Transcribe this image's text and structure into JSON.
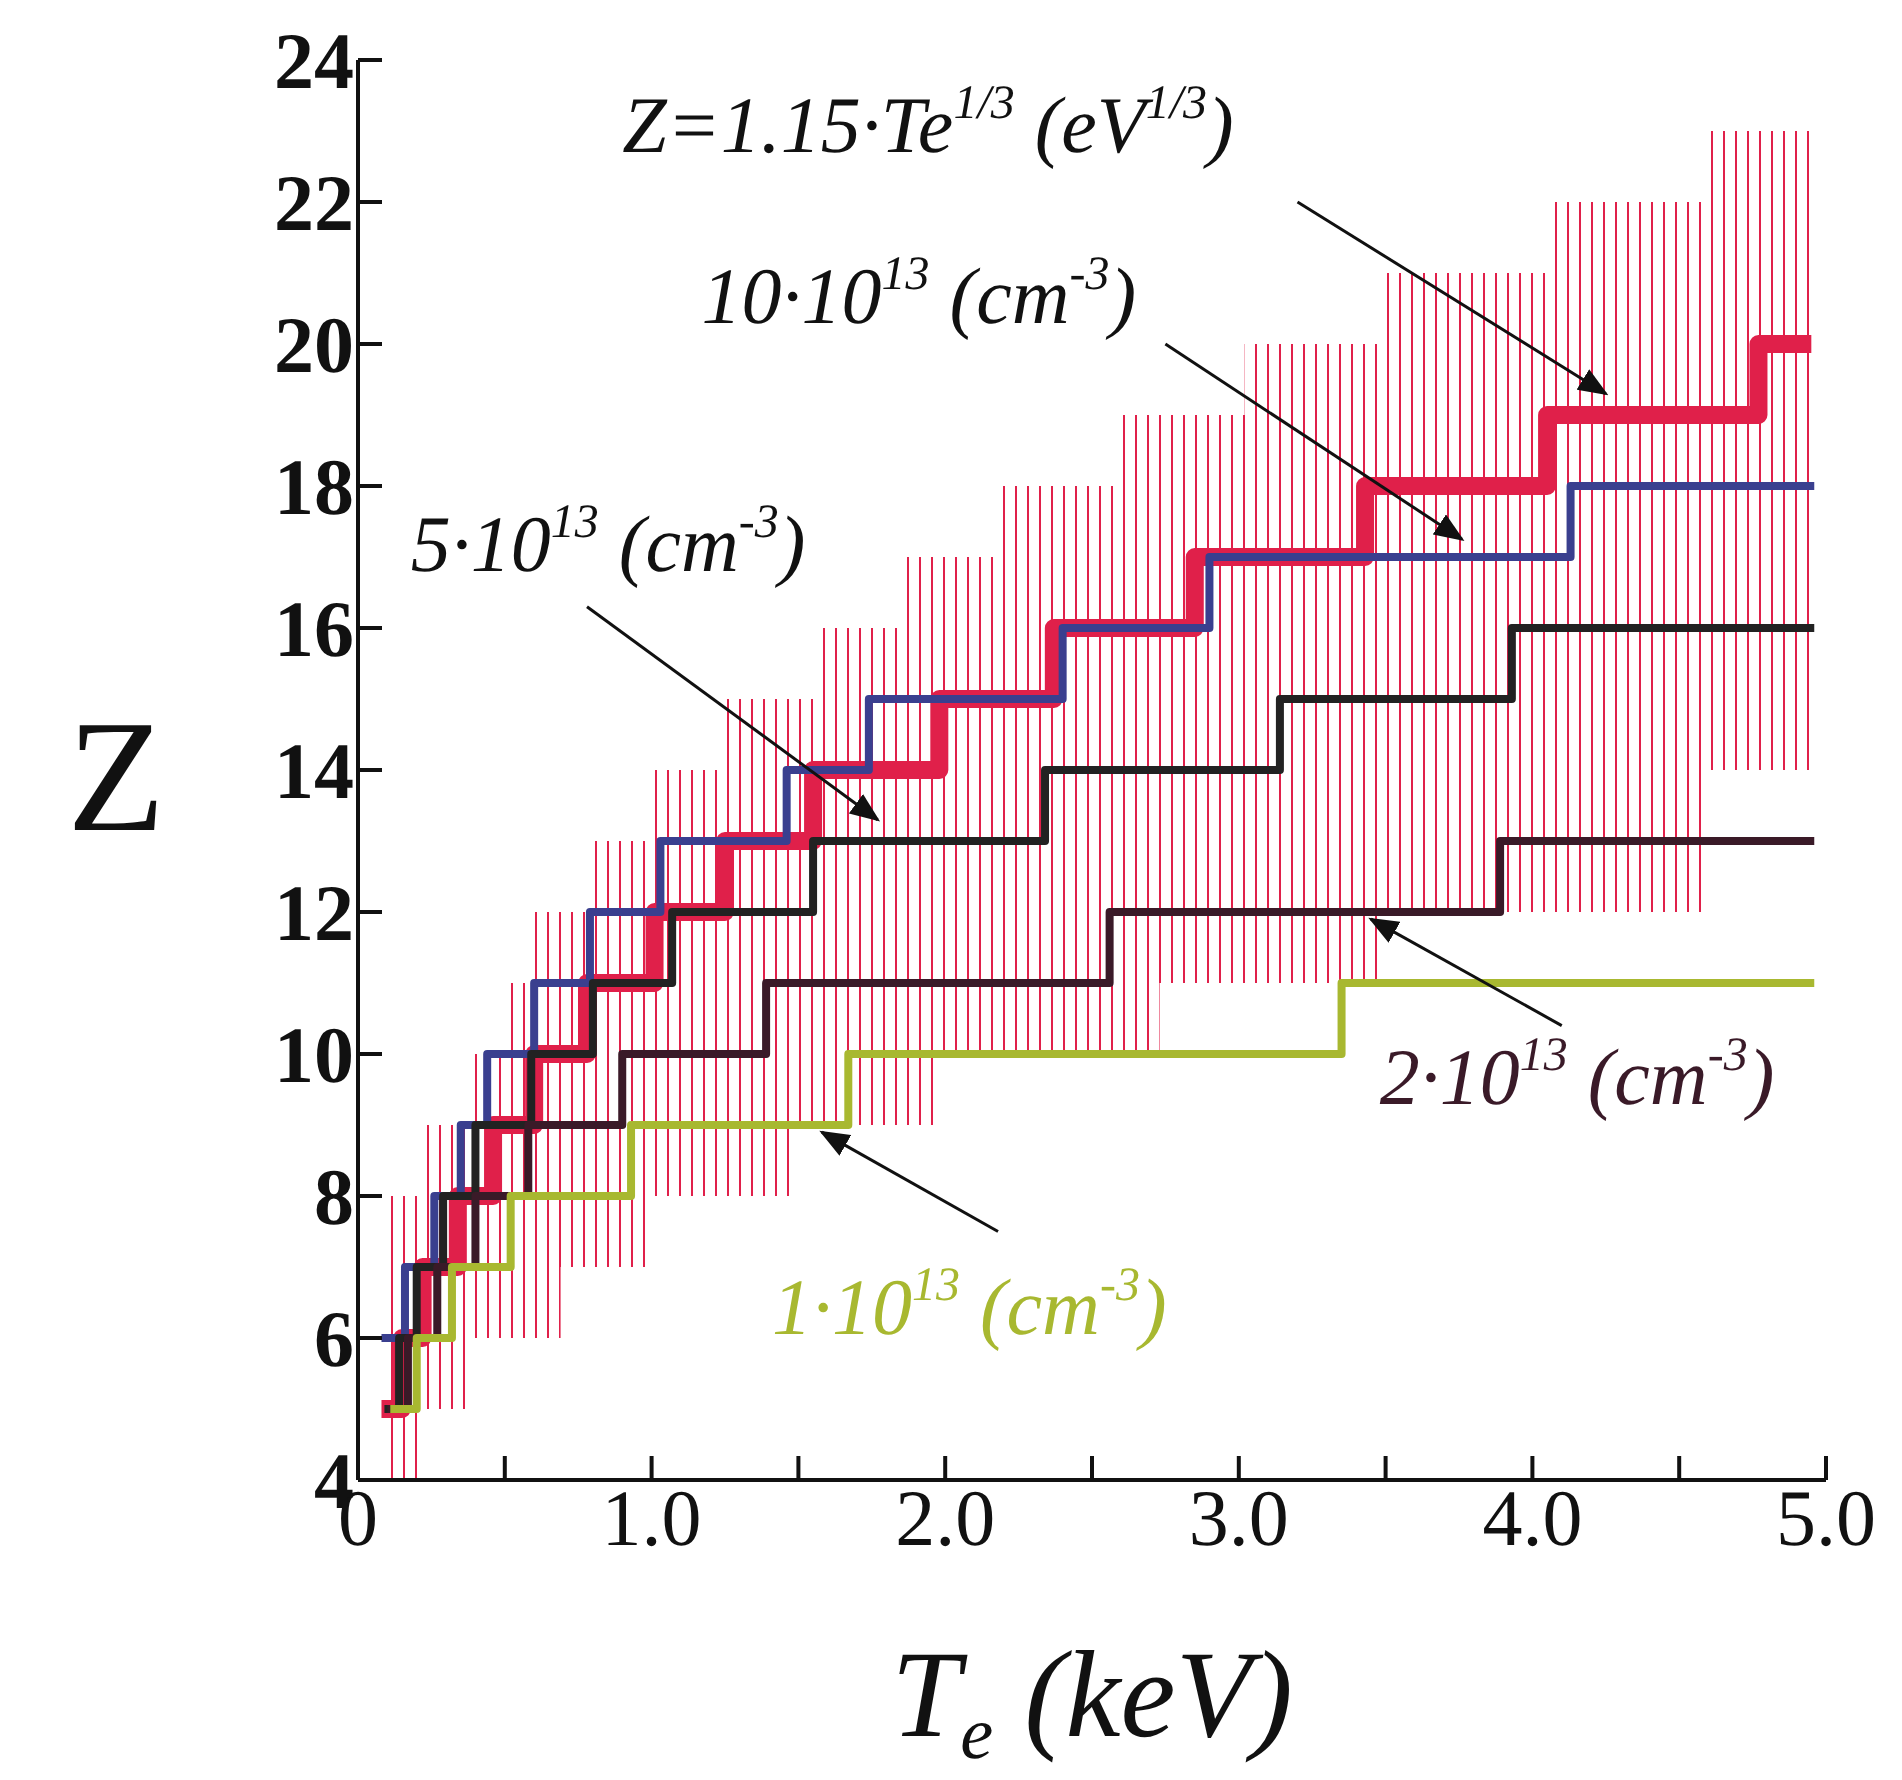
{
  "chart_data": {
    "type": "step",
    "xlabel": "T$_{e}$ (keV)",
    "ylabel": "Z",
    "xlim": [
      0,
      5
    ],
    "ylim": [
      4,
      24
    ],
    "xticks": [
      0,
      {
        "value": 0.5,
        "label": null
      },
      {
        "value": 1,
        "label": "1.0"
      },
      {
        "value": 1.5,
        "label": null
      },
      {
        "value": 2,
        "label": "2.0"
      },
      {
        "value": 2.5,
        "label": null
      },
      {
        "value": 3,
        "label": "3.0"
      },
      {
        "value": 3.5,
        "label": null
      },
      {
        "value": 4,
        "label": "4.0"
      },
      {
        "value": 4.5,
        "label": null
      },
      {
        "value": 5,
        "label": "5.0"
      }
    ],
    "yticks": [
      4,
      6,
      8,
      10,
      12,
      14,
      16,
      18,
      20,
      22,
      24
    ],
    "series": [
      {
        "name": "Z=1.15·Te$^{1/3}$ (eV$^{1/3}$)",
        "color": "#e0204a",
        "x": [
          0.08,
          0.15,
          0.22,
          0.34,
          0.38,
          0.46,
          0.49,
          0.6,
          0.69,
          0.78,
          0.8,
          1.01,
          1.25,
          1.49,
          1.55,
          1.84,
          1.98,
          2.18,
          2.37,
          2.58,
          2.73,
          2.85,
          3.02,
          3.43,
          3.5,
          4.05,
          4.6,
          4.77,
          4.95
        ],
        "values": [
          5,
          6,
          7,
          8,
          8,
          9,
          9,
          10,
          10,
          11,
          11,
          12,
          13,
          13,
          14,
          14,
          15,
          15,
          16,
          16,
          16,
          17,
          17,
          18,
          18,
          19,
          19,
          20,
          20
        ],
        "lower": [
          4,
          4,
          5,
          5,
          6,
          6,
          6,
          6,
          7,
          7,
          7,
          8,
          8,
          9,
          9,
          9,
          10,
          10,
          10,
          10,
          11,
          11,
          11,
          11,
          12,
          12,
          14,
          14,
          14
        ],
        "upper": [
          8,
          8,
          9,
          9,
          10,
          10,
          11,
          12,
          12,
          12,
          13,
          14,
          15,
          15,
          16,
          17,
          17,
          18,
          18,
          19,
          19,
          19,
          20,
          20,
          21,
          22,
          23,
          23,
          23
        ]
      },
      {
        "name": "10·10$^{13}$ (cm$^{-3}$)",
        "color": "#3a3f8f",
        "x": [
          0.08,
          0.16,
          0.26,
          0.35,
          0.44,
          0.6,
          0.79,
          1.03,
          1.46,
          1.74,
          2.4,
          2.9,
          4.13,
          4.96
        ],
        "values": [
          6,
          7,
          8,
          9,
          10,
          11,
          12,
          13,
          14,
          15,
          16,
          17,
          18,
          18
        ]
      },
      {
        "name": "5·10$^{13}$ (cm$^{-3}$)",
        "color": "#222222",
        "x": [
          0.09,
          0.14,
          0.2,
          0.29,
          0.4,
          0.59,
          0.8,
          1.07,
          1.55,
          2.34,
          3.14,
          3.93,
          4.96
        ],
        "values": [
          5,
          6,
          7,
          8,
          9,
          10,
          11,
          12,
          13,
          14,
          15,
          16,
          16
        ]
      },
      {
        "name": "2·10$^{13}$ (cm$^{-3}$)",
        "color": "#3a1a28",
        "x": [
          0.1,
          0.17,
          0.27,
          0.4,
          0.58,
          0.9,
          1.39,
          2.56,
          3.89,
          4.96
        ],
        "values": [
          5,
          6,
          7,
          8,
          9,
          10,
          11,
          12,
          13,
          13
        ]
      },
      {
        "name": "1·10$^{13}$ (cm$^{-3}$)",
        "color": "#a8b830",
        "x": [
          0.11,
          0.2,
          0.32,
          0.52,
          0.93,
          1.67,
          3.35,
          4.96
        ],
        "values": [
          5,
          6,
          7,
          8,
          9,
          10,
          11,
          11
        ]
      }
    ]
  }
}
